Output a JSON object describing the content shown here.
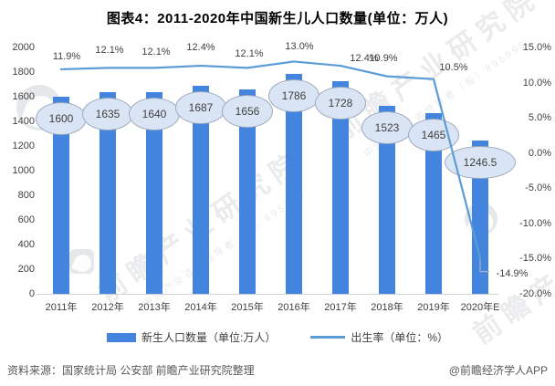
{
  "title": "图表4：2011-2020年中国新生儿人口数量(单位：万人)",
  "colors": {
    "bar": "#4284DE",
    "line": "#5C9CD6",
    "oval_fill": "#D9E4F4",
    "oval_border": "#9FAABB",
    "axis_text": "#404040",
    "leader": "#A7B4C6"
  },
  "chart_data": {
    "type": "bar",
    "title": "图表4：2011-2020年中国新生儿人口数量(单位：万人)",
    "categories": [
      "2011年",
      "2012年",
      "2013年",
      "2014年",
      "2015年",
      "2016年",
      "2017年",
      "2018年",
      "2019年",
      "2020年E"
    ],
    "series": [
      {
        "name": "新生人口数量（单位:万人）",
        "type": "bar",
        "axis": "left",
        "values": [
          1600,
          1635,
          1640,
          1687,
          1656,
          1786,
          1728,
          1523,
          1465,
          1246.5
        ]
      },
      {
        "name": "出生率（单位：%）",
        "type": "line",
        "axis": "right",
        "values": [
          11.9,
          12.1,
          12.1,
          12.4,
          12.1,
          13.0,
          12.4,
          10.9,
          10.5,
          -14.9
        ]
      }
    ],
    "bar_labels": [
      "1600",
      "1635",
      "1640",
      "1687",
      "1656",
      "1786",
      "1728",
      "1523",
      "1465",
      "1246.5"
    ],
    "rate_labels": [
      "11.9%",
      "12.1%",
      "12.1%",
      "12.4%",
      "12.1%",
      "13.0%",
      "12.4%",
      "10.9%",
      "10.5%",
      "-14.9%"
    ],
    "left_axis": {
      "min": 0,
      "max": 2000,
      "step": 200,
      "ticks": [
        "2000",
        "1800",
        "1600",
        "1400",
        "1200",
        "1000",
        "800",
        "600",
        "400",
        "200",
        "0"
      ]
    },
    "right_axis": {
      "min": -20,
      "max": 15,
      "step": 5,
      "ticks": [
        "15.0%",
        "10.0%",
        "5.0%",
        "0.0%",
        "-5.0%",
        "-10.0%",
        "-15.0%",
        "-20.0%"
      ]
    },
    "grid": false,
    "legend_position": "bottom"
  },
  "legend": [
    {
      "label": "新生人口数量（单位:万人）",
      "swatch": "bar"
    },
    {
      "label": "出生率（单位：%）",
      "swatch": "line"
    }
  ],
  "footer": {
    "source": "资料来源：国家统计局 公安部 前瞻产业研究院整理",
    "credit": "@前瞻经济学人APP"
  },
  "watermark": {
    "big": "前瞻产业研究院",
    "small": "中国产业咨询领导者（股）895995"
  }
}
